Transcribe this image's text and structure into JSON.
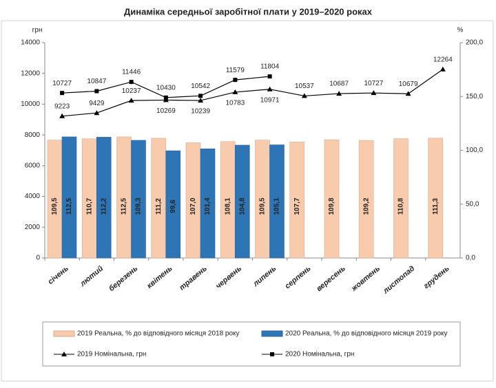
{
  "chart_data": {
    "type": "bar-line",
    "title": "Динаміка середньої заробітної плати у 2019–2020 роках",
    "ylabel": "грн",
    "y2label": "%",
    "categories": [
      "січень",
      "лютий",
      "березень",
      "квітень",
      "травень",
      "червень",
      "липень",
      "серпень",
      "вересень",
      "жовтень",
      "листопад",
      "грудень"
    ],
    "ylim": [
      0,
      14000
    ],
    "yticks": [
      0,
      2000,
      4000,
      6000,
      8000,
      10000,
      12000,
      14000
    ],
    "y2lim": [
      0,
      200
    ],
    "y2ticks": [
      {
        "value": 0,
        "label": "0,0"
      },
      {
        "value": 50,
        "label": "50,0"
      },
      {
        "value": 100,
        "label": "100,0"
      },
      {
        "value": 150,
        "label": "150,0"
      },
      {
        "value": 200,
        "label": "200,0"
      }
    ],
    "series": [
      {
        "name": "2019 Реальна, % до відповідного місяця 2018 року",
        "kind": "bar",
        "axis": "y2",
        "color": "#f8cbad",
        "values": [
          109.5,
          110.7,
          112.5,
          111.2,
          107.0,
          108.1,
          109.5,
          107.7,
          109.8,
          109.2,
          110.8,
          111.3
        ],
        "value_labels": [
          "109,5",
          "110,7",
          "112,5",
          "111,2",
          "107,0",
          "108,1",
          "109,5",
          "107,7",
          "109,8",
          "109,2",
          "110,8",
          "111,3"
        ]
      },
      {
        "name": "2020 Реальна, % до відповідного місяця 2019 року",
        "kind": "bar",
        "axis": "y2",
        "color": "#2e75b6",
        "values": [
          112.5,
          112.2,
          109.3,
          99.6,
          101.4,
          104.8,
          105.1,
          null,
          null,
          null,
          null,
          null
        ],
        "value_labels": [
          "112,5",
          "112,2",
          "109,3",
          "99,6",
          "101,4",
          "104,8",
          "105,1",
          null,
          null,
          null,
          null,
          null
        ]
      },
      {
        "name": "2019 Номінальна, грн",
        "kind": "line",
        "marker": "triangle",
        "color": "#000000",
        "values": [
          9223,
          9429,
          10237,
          10269,
          10239,
          10783,
          10971,
          10537,
          10687,
          10727,
          10679,
          12264
        ]
      },
      {
        "name": "2020 Номінальна, грн",
        "kind": "line",
        "marker": "square",
        "color": "#000000",
        "values": [
          10727,
          10847,
          11446,
          10430,
          10542,
          11579,
          11804,
          null,
          null,
          null,
          null,
          null
        ]
      }
    ]
  }
}
